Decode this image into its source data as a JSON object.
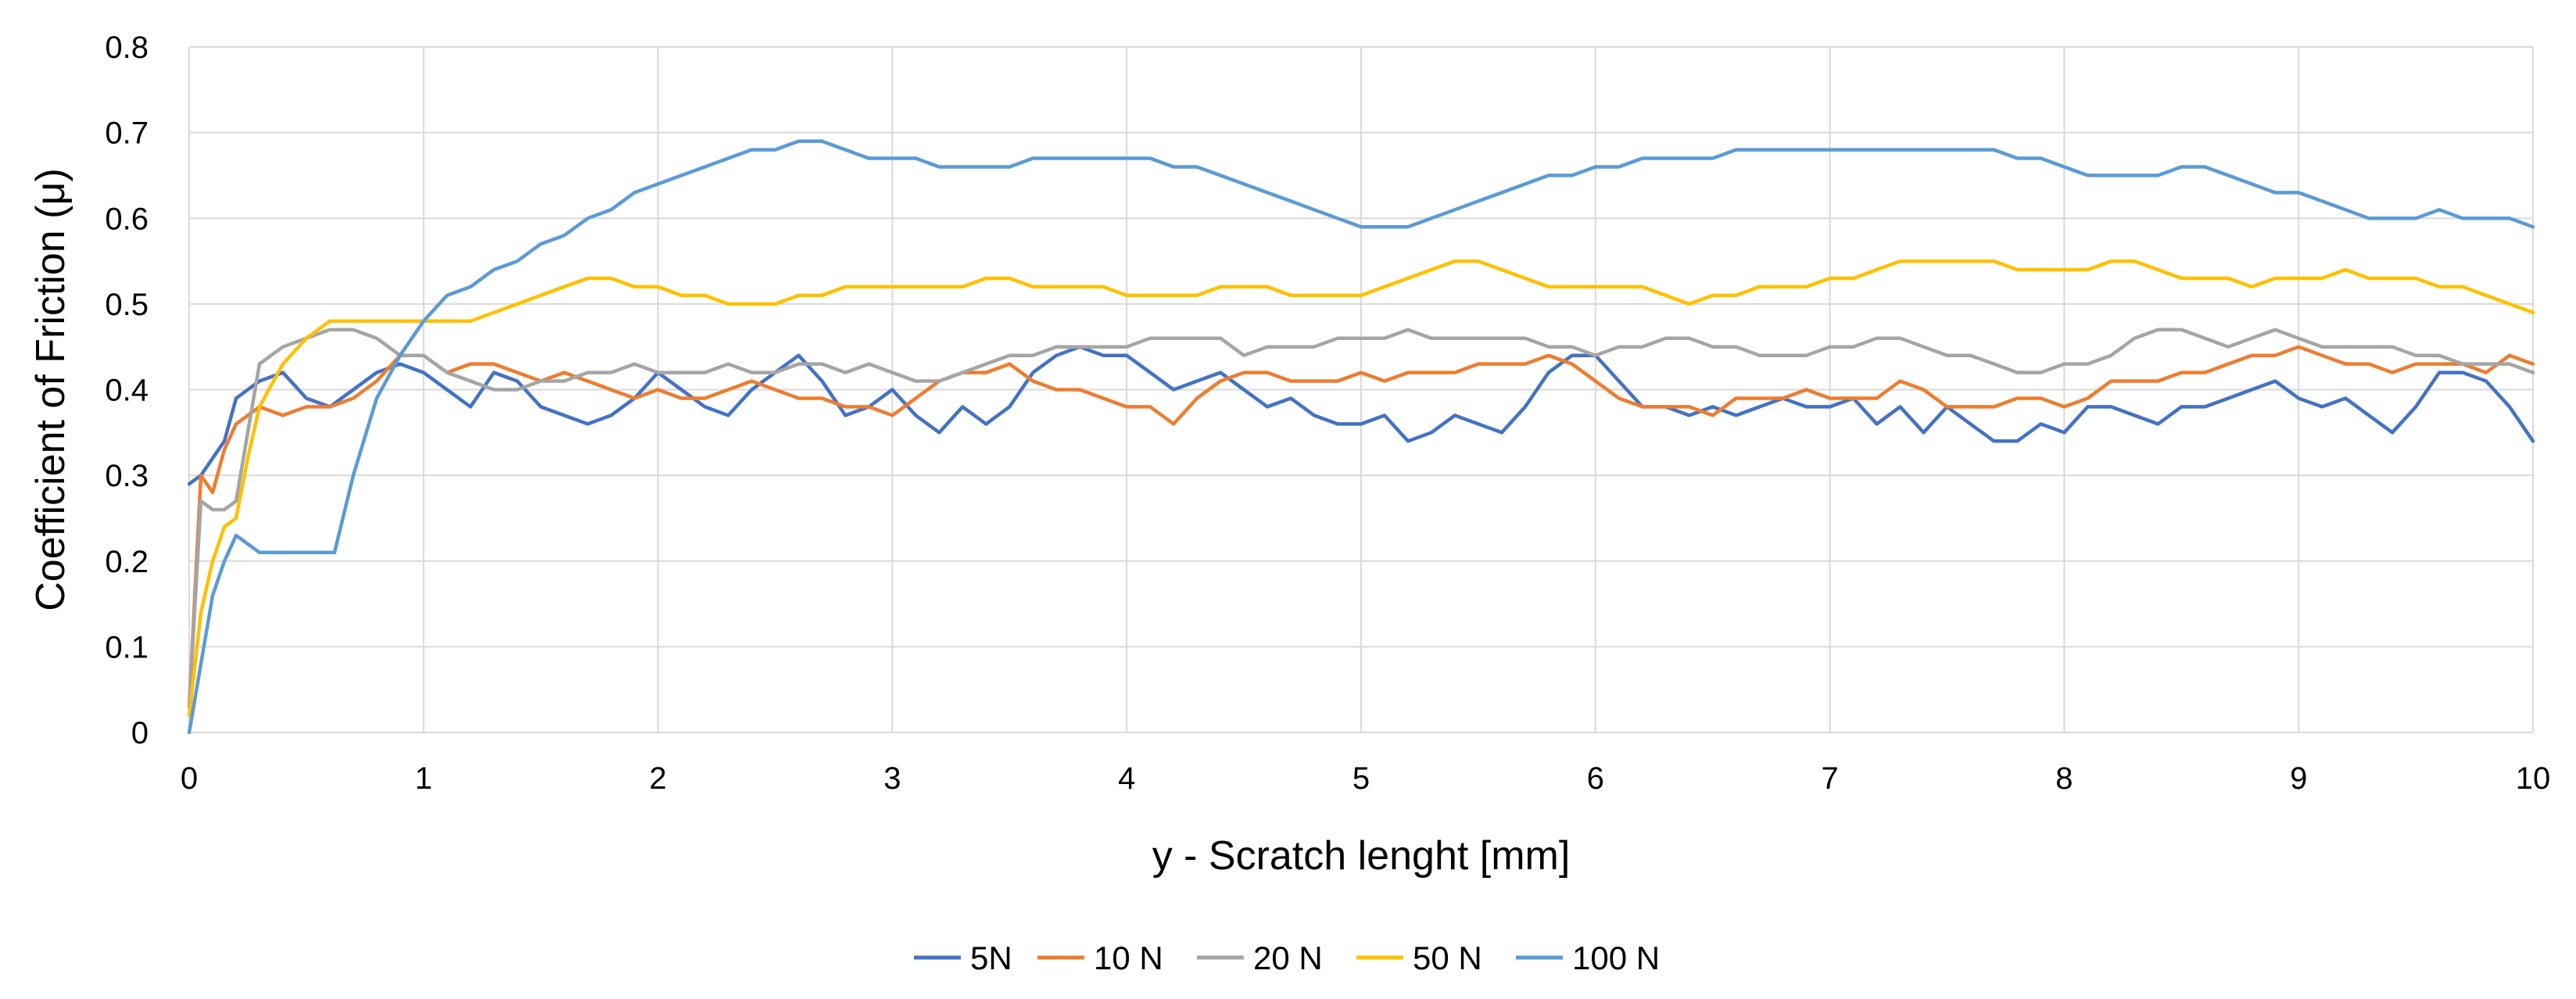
{
  "chart_data": {
    "type": "line",
    "title": "",
    "xlabel": "y - Scratch lenght [mm]",
    "ylabel": "Coefficient of Friction (μ)",
    "xlim": [
      0,
      10
    ],
    "ylim": [
      0,
      0.8
    ],
    "x_ticks": [
      "0",
      "1",
      "2",
      "3",
      "4",
      "5",
      "6",
      "7",
      "8",
      "9",
      "10"
    ],
    "y_ticks": [
      "0",
      "0.1",
      "0.2",
      "0.3",
      "0.4",
      "0.5",
      "0.6",
      "0.7",
      "0.8"
    ],
    "grid": true,
    "legend_position": "bottom",
    "series": [
      {
        "name": "5N",
        "color": "#4472C4",
        "x": [
          0,
          0.05,
          0.1,
          0.15,
          0.2,
          0.25,
          0.3,
          0.4,
          0.5,
          0.6,
          0.7,
          0.8,
          0.9,
          1.0,
          1.1,
          1.2,
          1.3,
          1.4,
          1.5,
          1.6,
          1.7,
          1.8,
          1.9,
          2.0,
          2.1,
          2.2,
          2.3,
          2.4,
          2.5,
          2.6,
          2.7,
          2.8,
          2.9,
          3.0,
          3.1,
          3.2,
          3.3,
          3.4,
          3.5,
          3.6,
          3.7,
          3.8,
          3.9,
          4.0,
          4.1,
          4.2,
          4.3,
          4.4,
          4.5,
          4.6,
          4.7,
          4.8,
          4.9,
          5.0,
          5.1,
          5.2,
          5.3,
          5.4,
          5.5,
          5.6,
          5.7,
          5.8,
          5.9,
          6.0,
          6.1,
          6.2,
          6.3,
          6.4,
          6.5,
          6.6,
          6.7,
          6.8,
          6.9,
          7.0,
          7.1,
          7.2,
          7.3,
          7.4,
          7.5,
          7.6,
          7.7,
          7.8,
          7.9,
          8.0,
          8.1,
          8.2,
          8.3,
          8.4,
          8.5,
          8.6,
          8.7,
          8.8,
          8.9,
          9.0,
          9.1,
          9.2,
          9.3,
          9.4,
          9.5,
          9.6,
          9.7,
          9.8,
          9.9,
          10.0
        ],
        "y": [
          0.29,
          0.3,
          0.32,
          0.34,
          0.39,
          0.4,
          0.41,
          0.42,
          0.39,
          0.38,
          0.4,
          0.42,
          0.43,
          0.42,
          0.4,
          0.38,
          0.42,
          0.41,
          0.38,
          0.37,
          0.36,
          0.37,
          0.39,
          0.42,
          0.4,
          0.38,
          0.37,
          0.4,
          0.42,
          0.44,
          0.41,
          0.37,
          0.38,
          0.4,
          0.37,
          0.35,
          0.38,
          0.36,
          0.38,
          0.42,
          0.44,
          0.45,
          0.44,
          0.44,
          0.42,
          0.4,
          0.41,
          0.42,
          0.4,
          0.38,
          0.39,
          0.37,
          0.36,
          0.36,
          0.37,
          0.34,
          0.35,
          0.37,
          0.36,
          0.35,
          0.38,
          0.42,
          0.44,
          0.44,
          0.41,
          0.38,
          0.38,
          0.37,
          0.38,
          0.37,
          0.38,
          0.39,
          0.38,
          0.38,
          0.39,
          0.36,
          0.38,
          0.35,
          0.38,
          0.36,
          0.34,
          0.34,
          0.36,
          0.35,
          0.38,
          0.38,
          0.37,
          0.36,
          0.38,
          0.38,
          0.39,
          0.4,
          0.41,
          0.39,
          0.38,
          0.39,
          0.37,
          0.35,
          0.38,
          0.42,
          0.42,
          0.41,
          0.38,
          0.34
        ]
      },
      {
        "name": "10 N",
        "color": "#ED7D31",
        "x": [
          0,
          0.05,
          0.1,
          0.15,
          0.2,
          0.25,
          0.3,
          0.4,
          0.5,
          0.6,
          0.7,
          0.8,
          0.9,
          1.0,
          1.1,
          1.2,
          1.3,
          1.4,
          1.5,
          1.6,
          1.7,
          1.8,
          1.9,
          2.0,
          2.1,
          2.2,
          2.3,
          2.4,
          2.5,
          2.6,
          2.7,
          2.8,
          2.9,
          3.0,
          3.1,
          3.2,
          3.3,
          3.4,
          3.5,
          3.6,
          3.7,
          3.8,
          3.9,
          4.0,
          4.1,
          4.2,
          4.3,
          4.4,
          4.5,
          4.6,
          4.7,
          4.8,
          4.9,
          5.0,
          5.1,
          5.2,
          5.3,
          5.4,
          5.5,
          5.6,
          5.7,
          5.8,
          5.9,
          6.0,
          6.1,
          6.2,
          6.3,
          6.4,
          6.5,
          6.6,
          6.7,
          6.8,
          6.9,
          7.0,
          7.1,
          7.2,
          7.3,
          7.4,
          7.5,
          7.6,
          7.7,
          7.8,
          7.9,
          8.0,
          8.1,
          8.2,
          8.3,
          8.4,
          8.5,
          8.6,
          8.7,
          8.8,
          8.9,
          9.0,
          9.1,
          9.2,
          9.3,
          9.4,
          9.5,
          9.6,
          9.7,
          9.8,
          9.9,
          10.0
        ],
        "y": [
          0.03,
          0.3,
          0.28,
          0.33,
          0.36,
          0.37,
          0.38,
          0.37,
          0.38,
          0.38,
          0.39,
          0.41,
          0.44,
          0.44,
          0.42,
          0.43,
          0.43,
          0.42,
          0.41,
          0.42,
          0.41,
          0.4,
          0.39,
          0.4,
          0.39,
          0.39,
          0.4,
          0.41,
          0.4,
          0.39,
          0.39,
          0.38,
          0.38,
          0.37,
          0.39,
          0.41,
          0.42,
          0.42,
          0.43,
          0.41,
          0.4,
          0.4,
          0.39,
          0.38,
          0.38,
          0.36,
          0.39,
          0.41,
          0.42,
          0.42,
          0.41,
          0.41,
          0.41,
          0.42,
          0.41,
          0.42,
          0.42,
          0.42,
          0.43,
          0.43,
          0.43,
          0.44,
          0.43,
          0.41,
          0.39,
          0.38,
          0.38,
          0.38,
          0.37,
          0.39,
          0.39,
          0.39,
          0.4,
          0.39,
          0.39,
          0.39,
          0.41,
          0.4,
          0.38,
          0.38,
          0.38,
          0.39,
          0.39,
          0.38,
          0.39,
          0.41,
          0.41,
          0.41,
          0.42,
          0.42,
          0.43,
          0.44,
          0.44,
          0.45,
          0.44,
          0.43,
          0.43,
          0.42,
          0.43,
          0.43,
          0.43,
          0.42,
          0.44,
          0.43
        ]
      },
      {
        "name": "20 N",
        "color": "#A5A5A5",
        "x": [
          0,
          0.05,
          0.1,
          0.15,
          0.2,
          0.25,
          0.3,
          0.4,
          0.5,
          0.6,
          0.7,
          0.8,
          0.9,
          1.0,
          1.1,
          1.2,
          1.3,
          1.4,
          1.5,
          1.6,
          1.7,
          1.8,
          1.9,
          2.0,
          2.1,
          2.2,
          2.3,
          2.4,
          2.5,
          2.6,
          2.7,
          2.8,
          2.9,
          3.0,
          3.1,
          3.2,
          3.3,
          3.4,
          3.5,
          3.6,
          3.7,
          3.8,
          3.9,
          4.0,
          4.1,
          4.2,
          4.3,
          4.4,
          4.5,
          4.6,
          4.7,
          4.8,
          4.9,
          5.0,
          5.1,
          5.2,
          5.3,
          5.4,
          5.5,
          5.6,
          5.7,
          5.8,
          5.9,
          6.0,
          6.1,
          6.2,
          6.3,
          6.4,
          6.5,
          6.6,
          6.7,
          6.8,
          6.9,
          7.0,
          7.1,
          7.2,
          7.3,
          7.4,
          7.5,
          7.6,
          7.7,
          7.8,
          7.9,
          8.0,
          8.1,
          8.2,
          8.3,
          8.4,
          8.5,
          8.6,
          8.7,
          8.8,
          8.9,
          9.0,
          9.1,
          9.2,
          9.3,
          9.4,
          9.5,
          9.6,
          9.7,
          9.8,
          9.9,
          10.0
        ],
        "y": [
          0.03,
          0.27,
          0.26,
          0.26,
          0.27,
          0.35,
          0.43,
          0.45,
          0.46,
          0.47,
          0.47,
          0.46,
          0.44,
          0.44,
          0.42,
          0.41,
          0.4,
          0.4,
          0.41,
          0.41,
          0.42,
          0.42,
          0.43,
          0.42,
          0.42,
          0.42,
          0.43,
          0.42,
          0.42,
          0.43,
          0.43,
          0.42,
          0.43,
          0.42,
          0.41,
          0.41,
          0.42,
          0.43,
          0.44,
          0.44,
          0.45,
          0.45,
          0.45,
          0.45,
          0.46,
          0.46,
          0.46,
          0.46,
          0.44,
          0.45,
          0.45,
          0.45,
          0.46,
          0.46,
          0.46,
          0.47,
          0.46,
          0.46,
          0.46,
          0.46,
          0.46,
          0.45,
          0.45,
          0.44,
          0.45,
          0.45,
          0.46,
          0.46,
          0.45,
          0.45,
          0.44,
          0.44,
          0.44,
          0.45,
          0.45,
          0.46,
          0.46,
          0.45,
          0.44,
          0.44,
          0.43,
          0.42,
          0.42,
          0.43,
          0.43,
          0.44,
          0.46,
          0.47,
          0.47,
          0.46,
          0.45,
          0.46,
          0.47,
          0.46,
          0.45,
          0.45,
          0.45,
          0.45,
          0.44,
          0.44,
          0.43,
          0.43,
          0.43,
          0.42
        ]
      },
      {
        "name": "50 N",
        "color": "#FFC000",
        "x": [
          0,
          0.05,
          0.1,
          0.15,
          0.2,
          0.25,
          0.3,
          0.4,
          0.5,
          0.6,
          0.7,
          0.8,
          0.9,
          1.0,
          1.1,
          1.2,
          1.3,
          1.4,
          1.5,
          1.6,
          1.7,
          1.8,
          1.9,
          2.0,
          2.1,
          2.2,
          2.3,
          2.4,
          2.5,
          2.6,
          2.7,
          2.8,
          2.9,
          3.0,
          3.1,
          3.2,
          3.3,
          3.4,
          3.5,
          3.6,
          3.7,
          3.8,
          3.9,
          4.0,
          4.1,
          4.2,
          4.3,
          4.4,
          4.5,
          4.6,
          4.7,
          4.8,
          4.9,
          5.0,
          5.1,
          5.2,
          5.3,
          5.4,
          5.5,
          5.6,
          5.7,
          5.8,
          5.9,
          6.0,
          6.1,
          6.2,
          6.3,
          6.4,
          6.5,
          6.6,
          6.7,
          6.8,
          6.9,
          7.0,
          7.1,
          7.2,
          7.3,
          7.4,
          7.5,
          7.6,
          7.7,
          7.8,
          7.9,
          8.0,
          8.1,
          8.2,
          8.3,
          8.4,
          8.5,
          8.6,
          8.7,
          8.8,
          8.9,
          9.0,
          9.1,
          9.2,
          9.3,
          9.4,
          9.5,
          9.6,
          9.7,
          9.8,
          9.9,
          10.0
        ],
        "y": [
          0.02,
          0.14,
          0.2,
          0.24,
          0.25,
          0.32,
          0.38,
          0.43,
          0.46,
          0.48,
          0.48,
          0.48,
          0.48,
          0.48,
          0.48,
          0.48,
          0.49,
          0.5,
          0.51,
          0.52,
          0.53,
          0.53,
          0.52,
          0.52,
          0.51,
          0.51,
          0.5,
          0.5,
          0.5,
          0.51,
          0.51,
          0.52,
          0.52,
          0.52,
          0.52,
          0.52,
          0.52,
          0.53,
          0.53,
          0.52,
          0.52,
          0.52,
          0.52,
          0.51,
          0.51,
          0.51,
          0.51,
          0.52,
          0.52,
          0.52,
          0.51,
          0.51,
          0.51,
          0.51,
          0.52,
          0.53,
          0.54,
          0.55,
          0.55,
          0.54,
          0.53,
          0.52,
          0.52,
          0.52,
          0.52,
          0.52,
          0.51,
          0.5,
          0.51,
          0.51,
          0.52,
          0.52,
          0.52,
          0.53,
          0.53,
          0.54,
          0.55,
          0.55,
          0.55,
          0.55,
          0.55,
          0.54,
          0.54,
          0.54,
          0.54,
          0.55,
          0.55,
          0.54,
          0.53,
          0.53,
          0.53,
          0.52,
          0.53,
          0.53,
          0.53,
          0.54,
          0.53,
          0.53,
          0.53,
          0.52,
          0.52,
          0.51,
          0.5,
          0.49
        ]
      },
      {
        "name": "100 N",
        "color": "#5B9BD5",
        "x": [
          0,
          0.05,
          0.1,
          0.15,
          0.2,
          0.25,
          0.3,
          0.4,
          0.5,
          0.6,
          0.62,
          0.7,
          0.8,
          0.9,
          1.0,
          1.1,
          1.2,
          1.3,
          1.4,
          1.5,
          1.6,
          1.7,
          1.8,
          1.9,
          2.0,
          2.1,
          2.2,
          2.3,
          2.4,
          2.5,
          2.6,
          2.7,
          2.8,
          2.9,
          3.0,
          3.1,
          3.2,
          3.3,
          3.4,
          3.5,
          3.6,
          3.7,
          3.8,
          3.9,
          4.0,
          4.1,
          4.2,
          4.3,
          4.4,
          4.5,
          4.6,
          4.7,
          4.8,
          4.9,
          5.0,
          5.1,
          5.2,
          5.3,
          5.4,
          5.5,
          5.6,
          5.7,
          5.8,
          5.9,
          6.0,
          6.1,
          6.2,
          6.3,
          6.4,
          6.5,
          6.6,
          6.7,
          6.8,
          6.9,
          7.0,
          7.1,
          7.2,
          7.3,
          7.4,
          7.5,
          7.6,
          7.7,
          7.8,
          7.9,
          8.0,
          8.1,
          8.2,
          8.3,
          8.4,
          8.5,
          8.6,
          8.7,
          8.8,
          8.9,
          9.0,
          9.1,
          9.2,
          9.3,
          9.4,
          9.5,
          9.6,
          9.7,
          9.8,
          9.9,
          10.0
        ],
        "y": [
          0.0,
          0.08,
          0.16,
          0.2,
          0.23,
          0.22,
          0.21,
          0.21,
          0.21,
          0.21,
          0.21,
          0.3,
          0.39,
          0.44,
          0.48,
          0.51,
          0.52,
          0.54,
          0.55,
          0.57,
          0.58,
          0.6,
          0.61,
          0.63,
          0.64,
          0.65,
          0.66,
          0.67,
          0.68,
          0.68,
          0.69,
          0.69,
          0.68,
          0.67,
          0.67,
          0.67,
          0.66,
          0.66,
          0.66,
          0.66,
          0.67,
          0.67,
          0.67,
          0.67,
          0.67,
          0.67,
          0.66,
          0.66,
          0.65,
          0.64,
          0.63,
          0.62,
          0.61,
          0.6,
          0.59,
          0.59,
          0.59,
          0.6,
          0.61,
          0.62,
          0.63,
          0.64,
          0.65,
          0.65,
          0.66,
          0.66,
          0.67,
          0.67,
          0.67,
          0.67,
          0.68,
          0.68,
          0.68,
          0.68,
          0.68,
          0.68,
          0.68,
          0.68,
          0.68,
          0.68,
          0.68,
          0.68,
          0.67,
          0.67,
          0.66,
          0.65,
          0.65,
          0.65,
          0.65,
          0.66,
          0.66,
          0.65,
          0.64,
          0.63,
          0.63,
          0.62,
          0.61,
          0.6,
          0.6,
          0.6,
          0.61,
          0.6,
          0.6,
          0.6,
          0.59
        ]
      }
    ]
  }
}
